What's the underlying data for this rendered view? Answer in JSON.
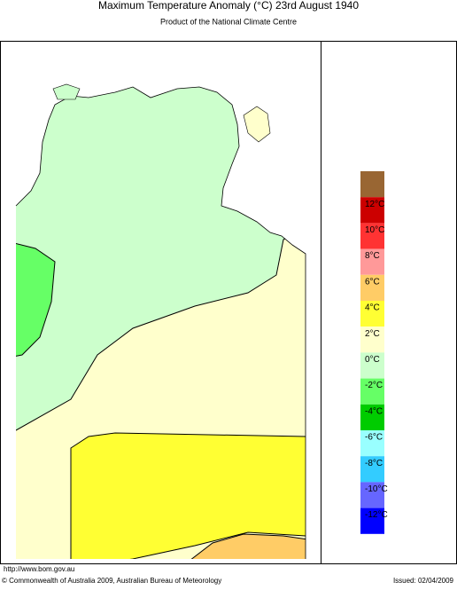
{
  "header": {
    "title": "Maximum Temperature Anomaly (°C)  23rd August 1940",
    "subtitle": "Product of the National Climate Centre"
  },
  "legend": {
    "top_color": "#996633",
    "items": [
      {
        "label": "12°C",
        "color": "#cc0000"
      },
      {
        "label": "10°C",
        "color": "#ff3333"
      },
      {
        "label": "8°C",
        "color": "#ff9999"
      },
      {
        "label": "6°C",
        "color": "#ffcc66"
      },
      {
        "label": "4°C",
        "color": "#ffff33"
      },
      {
        "label": "2°C",
        "color": "#ffffcc"
      },
      {
        "label": "0°C",
        "color": "#ccffcc"
      },
      {
        "label": "-2°C",
        "color": "#66ff66"
      },
      {
        "label": "-4°C",
        "color": "#00cc00"
      },
      {
        "label": "-6°C",
        "color": "#99ffff"
      },
      {
        "label": "-8°C",
        "color": "#33ccff"
      },
      {
        "label": "-10°C",
        "color": "#6666ff"
      },
      {
        "label": "-12°C",
        "color": "#0000ff"
      }
    ]
  },
  "footer": {
    "url": "http://www.bom.gov.au",
    "copyright": "© Commonwealth of Australia 2009, Australian Bureau of Meteorology",
    "issued": "Issued: 02/04/2009"
  }
}
